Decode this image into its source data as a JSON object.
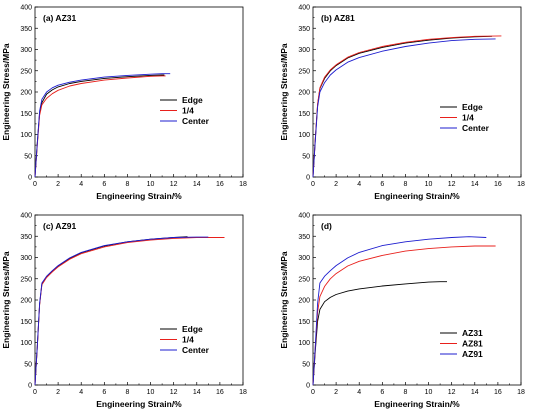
{
  "chart_data": [
    {
      "type": "line",
      "title": "(a) AZ31",
      "xlabel": "Engineering Strain/%",
      "ylabel": "Engineering Stress/MPa",
      "xlim": [
        0,
        18
      ],
      "ylim": [
        0,
        400
      ],
      "xticks": [
        0,
        2,
        4,
        6,
        8,
        10,
        12,
        14,
        16,
        18
      ],
      "yticks": [
        0,
        50,
        100,
        150,
        200,
        250,
        300,
        350,
        400
      ],
      "legend_position": "middle-right",
      "series": [
        {
          "name": "Edge",
          "color": "#000000",
          "points": [
            [
              0,
              0
            ],
            [
              0.2,
              80
            ],
            [
              0.4,
              150
            ],
            [
              0.6,
              175
            ],
            [
              1,
              195
            ],
            [
              1.5,
              205
            ],
            [
              2,
              212
            ],
            [
              3,
              220
            ],
            [
              4,
              225
            ],
            [
              6,
              232
            ],
            [
              8,
              236
            ],
            [
              10,
              239
            ],
            [
              11,
              240
            ],
            [
              11.2,
              240
            ]
          ]
        },
        {
          "name": "1/4",
          "color": "#e8201c",
          "points": [
            [
              0,
              0
            ],
            [
              0.2,
              75
            ],
            [
              0.4,
              145
            ],
            [
              0.6,
              170
            ],
            [
              1,
              185
            ],
            [
              1.5,
              196
            ],
            [
              2,
              204
            ],
            [
              3,
              214
            ],
            [
              4,
              220
            ],
            [
              6,
              228
            ],
            [
              8,
              233
            ],
            [
              10,
              237
            ],
            [
              11,
              238
            ],
            [
              11.3,
              238
            ]
          ]
        },
        {
          "name": "Center",
          "color": "#1d1dcf",
          "points": [
            [
              0,
              0
            ],
            [
              0.2,
              80
            ],
            [
              0.4,
              155
            ],
            [
              0.6,
              183
            ],
            [
              1,
              200
            ],
            [
              1.5,
              210
            ],
            [
              2,
              216
            ],
            [
              3,
              223
            ],
            [
              4,
              228
            ],
            [
              6,
              235
            ],
            [
              8,
              239
            ],
            [
              10,
              242
            ],
            [
              11,
              243
            ],
            [
              11.7,
              243
            ]
          ]
        }
      ]
    },
    {
      "type": "line",
      "title": "(b) AZ81",
      "xlabel": "Engineering Strain/%",
      "ylabel": "Engineering Stress/MPa",
      "xlim": [
        0,
        18
      ],
      "ylim": [
        0,
        400
      ],
      "xticks": [
        0,
        2,
        4,
        6,
        8,
        10,
        12,
        14,
        16,
        18
      ],
      "yticks": [
        0,
        50,
        100,
        150,
        200,
        250,
        300,
        350,
        400
      ],
      "legend_position": "middle-right",
      "series": [
        {
          "name": "Edge",
          "color": "#000000",
          "points": [
            [
              0,
              0
            ],
            [
              0.2,
              90
            ],
            [
              0.4,
              170
            ],
            [
              0.6,
              208
            ],
            [
              1,
              232
            ],
            [
              1.5,
              250
            ],
            [
              2,
              262
            ],
            [
              3,
              280
            ],
            [
              4,
              291
            ],
            [
              6,
              305
            ],
            [
              8,
              315
            ],
            [
              10,
              322
            ],
            [
              12,
              327
            ],
            [
              14,
              330
            ],
            [
              15.5,
              331
            ]
          ]
        },
        {
          "name": "1/4",
          "color": "#e8201c",
          "points": [
            [
              0,
              0
            ],
            [
              0.2,
              90
            ],
            [
              0.4,
              172
            ],
            [
              0.6,
              210
            ],
            [
              1,
              235
            ],
            [
              1.5,
              252
            ],
            [
              2,
              264
            ],
            [
              3,
              282
            ],
            [
              4,
              293
            ],
            [
              6,
              307
            ],
            [
              8,
              317
            ],
            [
              10,
              324
            ],
            [
              12,
              328
            ],
            [
              14,
              331
            ],
            [
              16.3,
              332
            ]
          ]
        },
        {
          "name": "Center",
          "color": "#1d1dcf",
          "points": [
            [
              0,
              0
            ],
            [
              0.2,
              85
            ],
            [
              0.4,
              165
            ],
            [
              0.6,
              200
            ],
            [
              1,
              222
            ],
            [
              1.5,
              240
            ],
            [
              2,
              252
            ],
            [
              3,
              270
            ],
            [
              4,
              281
            ],
            [
              6,
              296
            ],
            [
              8,
              307
            ],
            [
              10,
              315
            ],
            [
              12,
              321
            ],
            [
              14,
              324
            ],
            [
              15.8,
              325
            ]
          ]
        }
      ]
    },
    {
      "type": "line",
      "title": "(c) AZ91",
      "xlabel": "Engineering Strain/%",
      "ylabel": "Engineering Stress/MPa",
      "xlim": [
        0,
        18
      ],
      "ylim": [
        0,
        400
      ],
      "xticks": [
        0,
        2,
        4,
        6,
        8,
        10,
        12,
        14,
        16,
        18
      ],
      "yticks": [
        0,
        50,
        100,
        150,
        200,
        250,
        300,
        350,
        400
      ],
      "legend_position": "bottom-right",
      "series": [
        {
          "name": "Edge",
          "color": "#000000",
          "points": [
            [
              0,
              0
            ],
            [
              0.2,
              90
            ],
            [
              0.4,
              190
            ],
            [
              0.6,
              238
            ],
            [
              1,
              255
            ],
            [
              1.5,
              268
            ],
            [
              2,
              280
            ],
            [
              3,
              298
            ],
            [
              4,
              311
            ],
            [
              6,
              327
            ],
            [
              8,
              337
            ],
            [
              10,
              343
            ],
            [
              12,
              347
            ],
            [
              13.2,
              349
            ]
          ]
        },
        {
          "name": "1/4",
          "color": "#e8201c",
          "points": [
            [
              0,
              0
            ],
            [
              0.2,
              90
            ],
            [
              0.4,
              188
            ],
            [
              0.6,
              236
            ],
            [
              1,
              253
            ],
            [
              1.5,
              266
            ],
            [
              2,
              278
            ],
            [
              3,
              296
            ],
            [
              4,
              309
            ],
            [
              6,
              325
            ],
            [
              8,
              335
            ],
            [
              10,
              341
            ],
            [
              12,
              345
            ],
            [
              14,
              347
            ],
            [
              16.4,
              347
            ]
          ]
        },
        {
          "name": "Center",
          "color": "#1d1dcf",
          "points": [
            [
              0,
              0
            ],
            [
              0.2,
              92
            ],
            [
              0.4,
              192
            ],
            [
              0.6,
              240
            ],
            [
              1,
              256
            ],
            [
              1.5,
              269
            ],
            [
              2,
              281
            ],
            [
              3,
              299
            ],
            [
              4,
              312
            ],
            [
              6,
              328
            ],
            [
              8,
              337
            ],
            [
              10,
              343
            ],
            [
              12,
              347
            ],
            [
              14,
              348
            ],
            [
              15,
              348
            ]
          ]
        }
      ]
    },
    {
      "type": "line",
      "title": "(d)",
      "xlabel": "Engineering Strain/%",
      "ylabel": "Engineering Stress/MPa",
      "xlim": [
        0,
        18
      ],
      "ylim": [
        0,
        400
      ],
      "xticks": [
        0,
        2,
        4,
        6,
        8,
        10,
        12,
        14,
        16,
        18
      ],
      "yticks": [
        0,
        50,
        100,
        150,
        200,
        250,
        300,
        350,
        400
      ],
      "legend_position": "bottom-right",
      "series": [
        {
          "name": "AZ31",
          "color": "#000000",
          "points": [
            [
              0,
              0
            ],
            [
              0.2,
              80
            ],
            [
              0.4,
              150
            ],
            [
              0.6,
              178
            ],
            [
              1,
              196
            ],
            [
              1.5,
              206
            ],
            [
              2,
              213
            ],
            [
              3,
              221
            ],
            [
              4,
              226
            ],
            [
              6,
              233
            ],
            [
              8,
              238
            ],
            [
              10,
              242
            ],
            [
              11,
              243
            ],
            [
              11.6,
              243
            ]
          ]
        },
        {
          "name": "AZ81",
          "color": "#e8201c",
          "points": [
            [
              0,
              0
            ],
            [
              0.2,
              90
            ],
            [
              0.4,
              172
            ],
            [
              0.6,
              208
            ],
            [
              1,
              232
            ],
            [
              1.5,
              250
            ],
            [
              2,
              262
            ],
            [
              3,
              280
            ],
            [
              4,
              291
            ],
            [
              6,
              305
            ],
            [
              8,
              315
            ],
            [
              10,
              321
            ],
            [
              12,
              325
            ],
            [
              14,
              327
            ],
            [
              15.8,
              327
            ]
          ]
        },
        {
          "name": "AZ91",
          "color": "#1d1dcf",
          "points": [
            [
              0,
              0
            ],
            [
              0.2,
              92
            ],
            [
              0.4,
              192
            ],
            [
              0.6,
              240
            ],
            [
              1,
              256
            ],
            [
              1.5,
              269
            ],
            [
              2,
              281
            ],
            [
              3,
              299
            ],
            [
              4,
              312
            ],
            [
              6,
              328
            ],
            [
              8,
              337
            ],
            [
              10,
              343
            ],
            [
              12,
              347
            ],
            [
              13.5,
              349
            ],
            [
              15,
              347
            ]
          ]
        }
      ]
    }
  ]
}
